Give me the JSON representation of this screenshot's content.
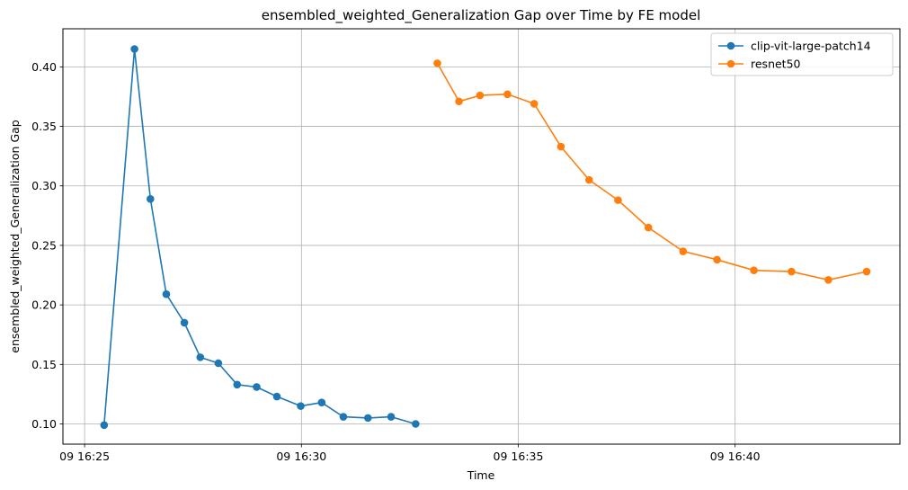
{
  "chart_data": {
    "type": "line",
    "title": "ensembled_weighted_Generalization Gap over Time by FE model",
    "xlabel": "Time",
    "ylabel": "ensembled_weighted_Generalization Gap",
    "grid": true,
    "legend_position": "top-right",
    "x_unit": "minutes",
    "xlim": [
      "16:24.5",
      "16:43.8"
    ],
    "ylim": [
      0.083,
      0.432
    ],
    "x_ticks": [
      {
        "value": "16:25",
        "label": "09 16:25"
      },
      {
        "value": "16:30",
        "label": "09 16:30"
      },
      {
        "value": "16:35",
        "label": "09 16:35"
      },
      {
        "value": "16:40",
        "label": "09 16:40"
      }
    ],
    "y_ticks": [
      {
        "value": 0.1,
        "label": "0.10"
      },
      {
        "value": 0.15,
        "label": "0.15"
      },
      {
        "value": 0.2,
        "label": "0.20"
      },
      {
        "value": 0.25,
        "label": "0.25"
      },
      {
        "value": 0.3,
        "label": "0.30"
      },
      {
        "value": 0.35,
        "label": "0.35"
      },
      {
        "value": 0.4,
        "label": "0.40"
      }
    ],
    "series": [
      {
        "name": "clip-vit-large-patch14",
        "color": "#1f77b4",
        "points": [
          {
            "x": "16:25:27",
            "y": 0.099
          },
          {
            "x": "16:26:09",
            "y": 0.415
          },
          {
            "x": "16:26:31",
            "y": 0.289
          },
          {
            "x": "16:26:53",
            "y": 0.209
          },
          {
            "x": "16:27:18",
            "y": 0.185
          },
          {
            "x": "16:27:40",
            "y": 0.156
          },
          {
            "x": "16:28:05",
            "y": 0.151
          },
          {
            "x": "16:28:31",
            "y": 0.133
          },
          {
            "x": "16:28:58",
            "y": 0.131
          },
          {
            "x": "16:29:26",
            "y": 0.123
          },
          {
            "x": "16:29:59",
            "y": 0.115
          },
          {
            "x": "16:30:28",
            "y": 0.118
          },
          {
            "x": "16:30:58",
            "y": 0.106
          },
          {
            "x": "16:31:32",
            "y": 0.105
          },
          {
            "x": "16:32:04",
            "y": 0.106
          },
          {
            "x": "16:32:38",
            "y": 0.1
          }
        ]
      },
      {
        "name": "resnet50",
        "color": "#ff7f0e",
        "points": [
          {
            "x": "16:33:08",
            "y": 0.403
          },
          {
            "x": "16:33:38",
            "y": 0.371
          },
          {
            "x": "16:34:07",
            "y": 0.376
          },
          {
            "x": "16:34:45",
            "y": 0.377
          },
          {
            "x": "16:35:22",
            "y": 0.369
          },
          {
            "x": "16:35:59",
            "y": 0.333
          },
          {
            "x": "16:36:38",
            "y": 0.305
          },
          {
            "x": "16:37:18",
            "y": 0.288
          },
          {
            "x": "16:38:00",
            "y": 0.265
          },
          {
            "x": "16:38:48",
            "y": 0.245
          },
          {
            "x": "16:39:35",
            "y": 0.238
          },
          {
            "x": "16:40:26",
            "y": 0.229
          },
          {
            "x": "16:41:18",
            "y": 0.228
          },
          {
            "x": "16:42:09",
            "y": 0.221
          },
          {
            "x": "16:43:02",
            "y": 0.228
          }
        ]
      }
    ]
  }
}
